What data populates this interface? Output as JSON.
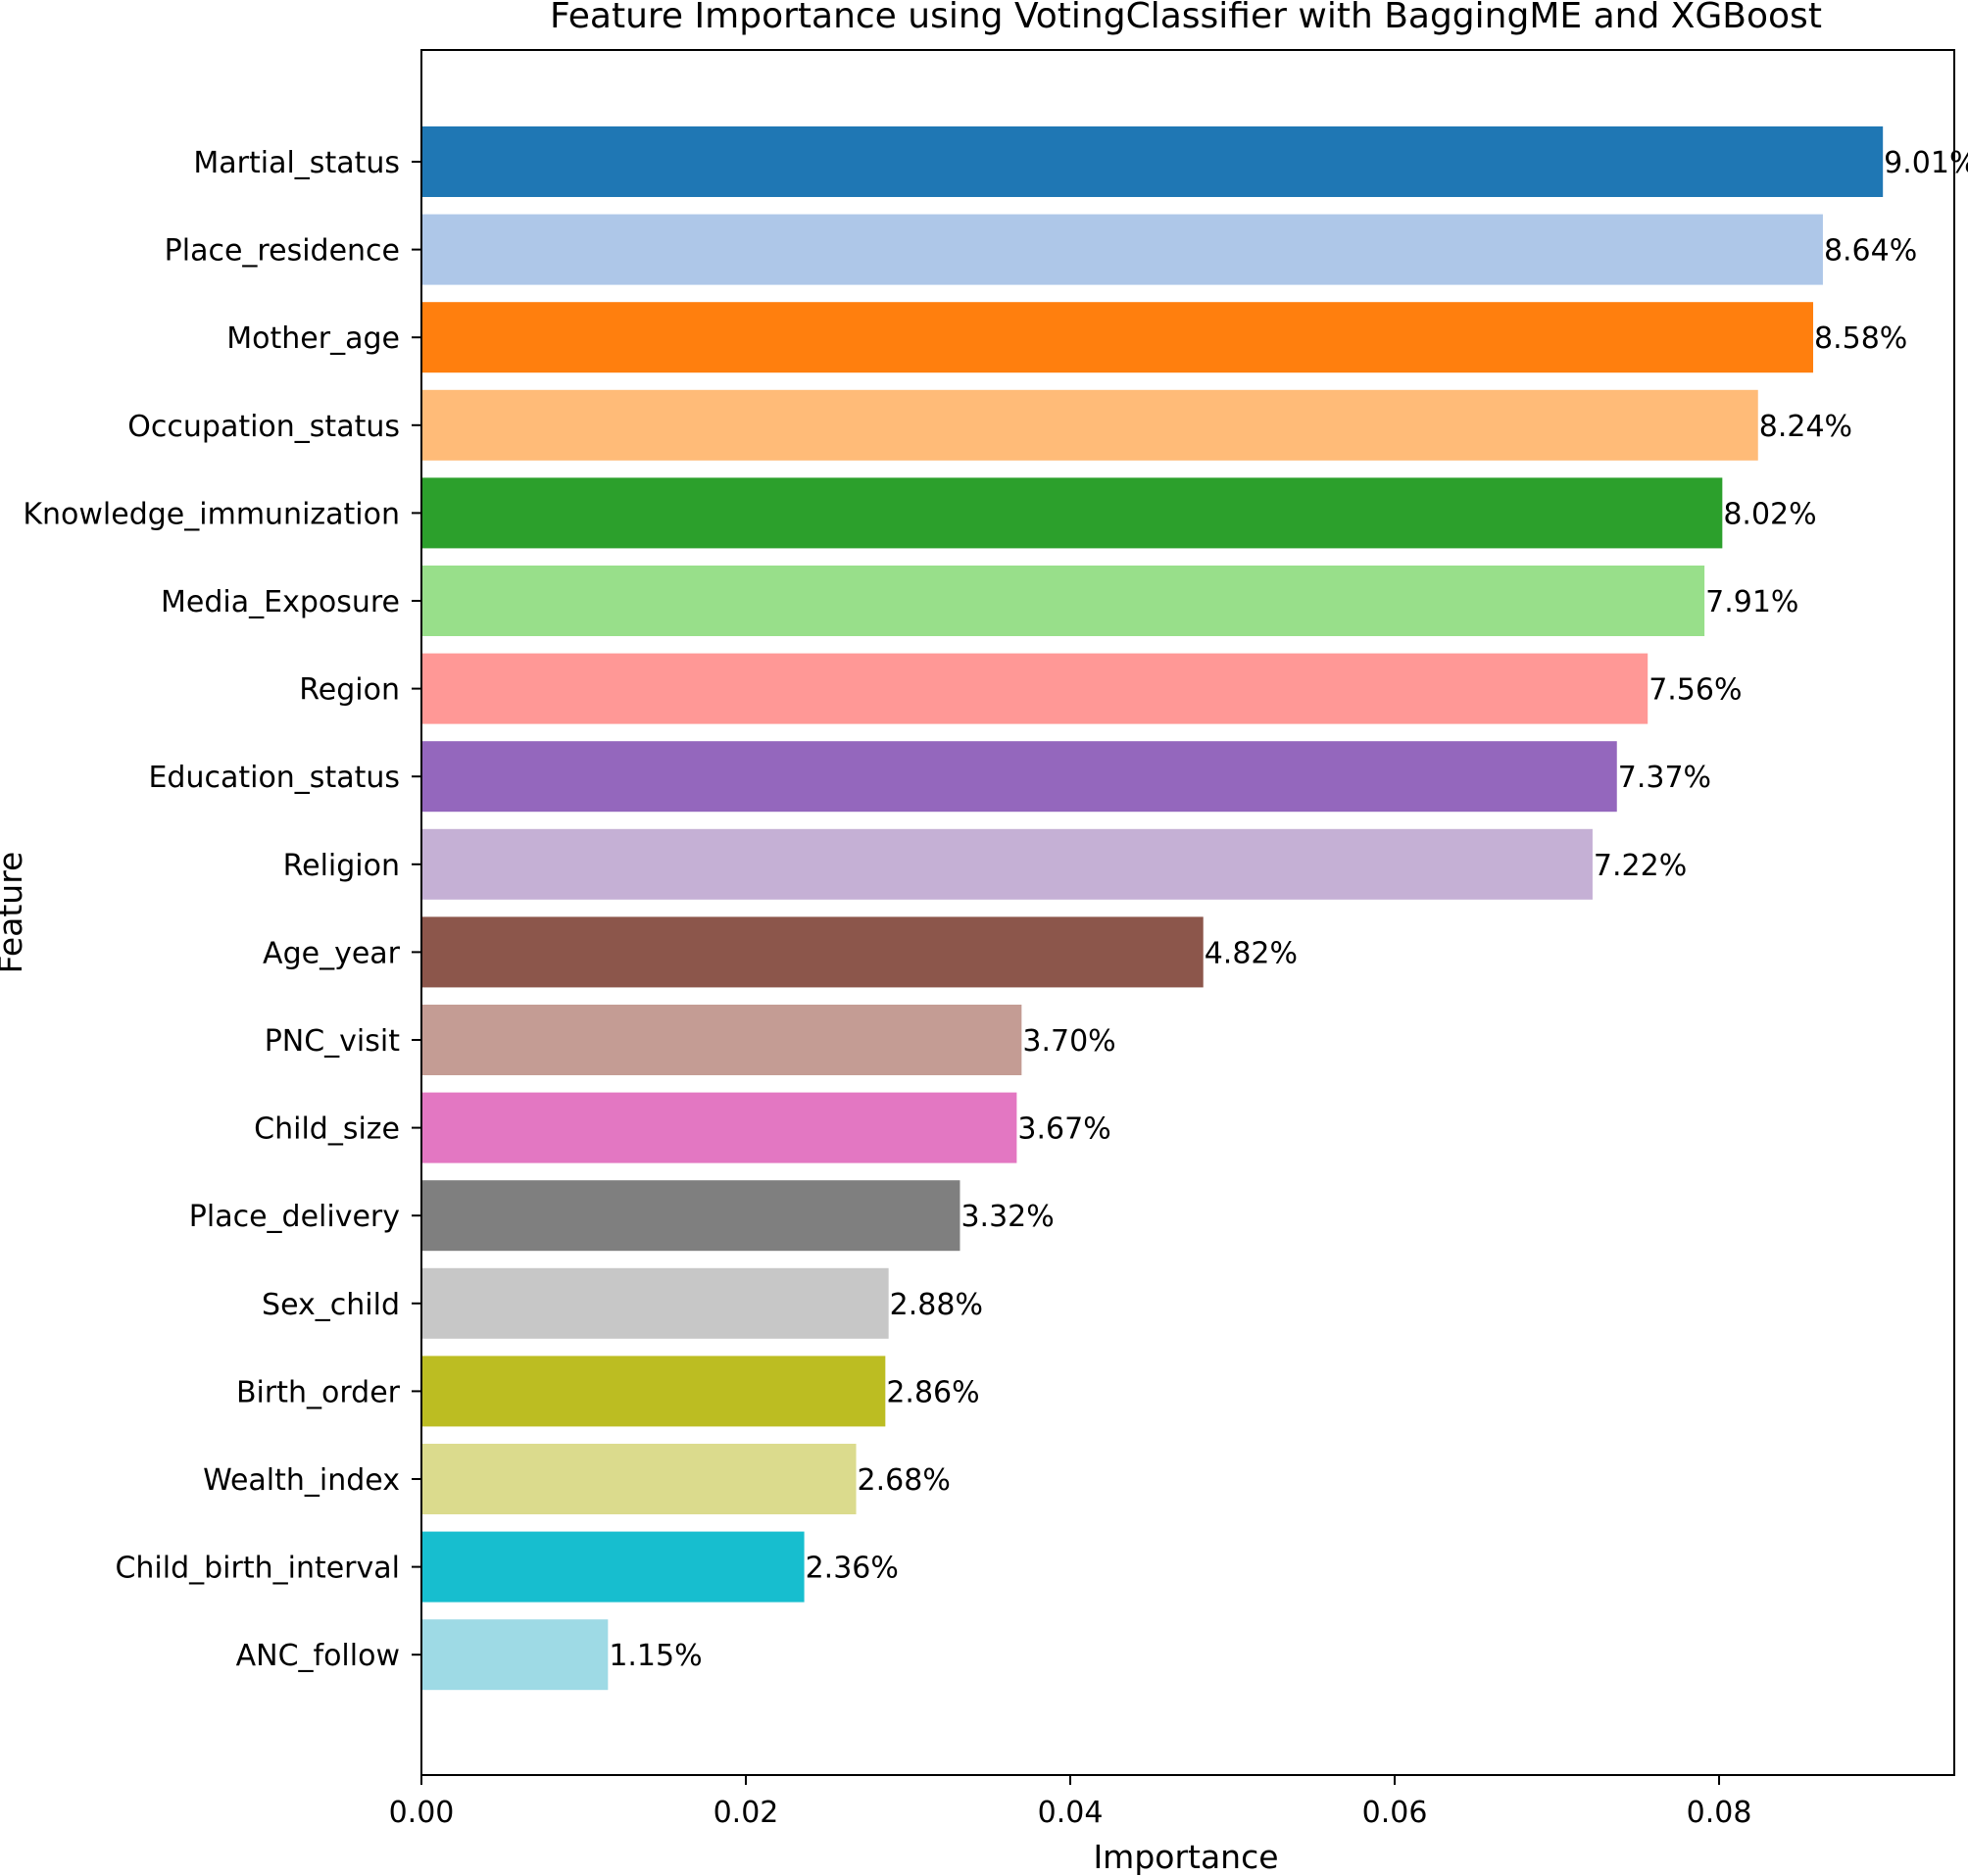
{
  "chart_data": {
    "type": "bar",
    "orientation": "horizontal",
    "title": "Feature Importance using VotingClassifier with BaggingME and XGBoost",
    "xlabel": "Importance",
    "ylabel": "Feature",
    "xlim": [
      0.0,
      0.0945
    ],
    "xticks": [
      0.0,
      0.02,
      0.04,
      0.06,
      0.08
    ],
    "xtick_labels": [
      "0.00",
      "0.02",
      "0.04",
      "0.06",
      "0.08"
    ],
    "grid": false,
    "categories": [
      "Martial_status",
      "Place_residence",
      "Mother_age",
      "Occupation_status",
      "Knowledge_immunization",
      "Media_Exposure",
      "Region",
      "Education_status",
      "Religion",
      "Age_year",
      "PNC_visit",
      "Child_size",
      "Place_delivery",
      "Sex_child",
      "Birth_order",
      "Wealth_index",
      "Child_birth_interval",
      "ANC_follow"
    ],
    "values": [
      0.0901,
      0.0864,
      0.0858,
      0.0824,
      0.0802,
      0.0791,
      0.0756,
      0.0737,
      0.0722,
      0.0482,
      0.037,
      0.0367,
      0.0332,
      0.0288,
      0.0286,
      0.0268,
      0.0236,
      0.0115
    ],
    "value_labels": [
      "9.01%",
      "8.64%",
      "8.58%",
      "8.24%",
      "8.02%",
      "7.91%",
      "7.56%",
      "7.37%",
      "7.22%",
      "4.82%",
      "3.70%",
      "3.67%",
      "3.32%",
      "2.88%",
      "2.86%",
      "2.68%",
      "2.36%",
      "1.15%"
    ],
    "colors": [
      "#1f77b4",
      "#aec7e8",
      "#ff7f0e",
      "#ffbb78",
      "#2ca02c",
      "#98df8a",
      "#ff9896",
      "#9467bd",
      "#c5b0d5",
      "#8c564b",
      "#c49c94",
      "#e377c2",
      "#7f7f7f",
      "#c7c7c7",
      "#bcbd22",
      "#dbdb8d",
      "#17becf",
      "#9edae5"
    ]
  }
}
